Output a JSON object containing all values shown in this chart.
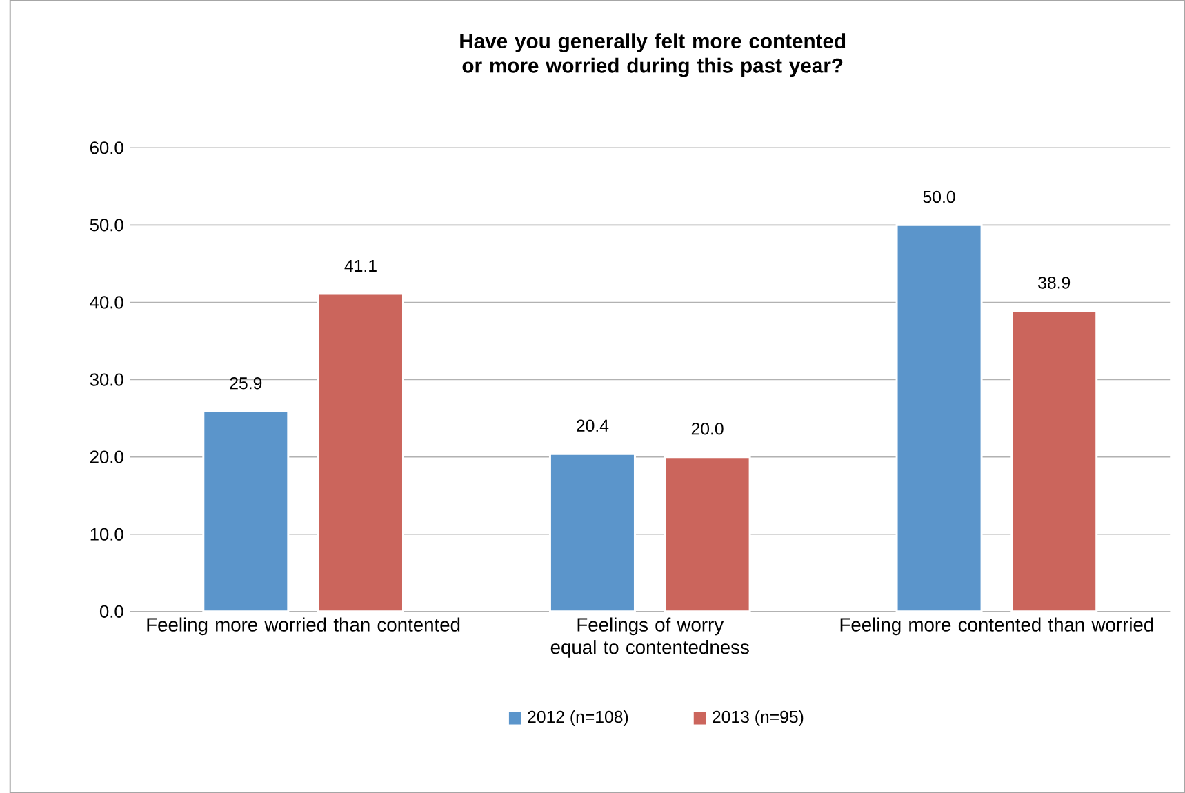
{
  "chart_data": {
    "type": "bar",
    "title": "Have you generally felt more contented or more worried during this past year?",
    "categories": [
      "Feeling more worried than contented",
      "Feelings of worry equal to contentedness",
      "Feeling more contented than worried"
    ],
    "series": [
      {
        "name": "2012 (n=108)",
        "color": "#5b95cb",
        "values": [
          25.9,
          20.4,
          50.0
        ],
        "value_labels": [
          "25.9",
          "20.4",
          "50.0"
        ]
      },
      {
        "name": "2013 (n=95)",
        "color": "#cb655c",
        "values": [
          41.1,
          20.0,
          38.9
        ],
        "value_labels": [
          "41.1",
          "20.0",
          "38.9"
        ]
      }
    ],
    "ylim": [
      0,
      60
    ],
    "yticks": [
      {
        "value": 0,
        "label": "0.0"
      },
      {
        "value": 10,
        "label": "10.0"
      },
      {
        "value": 20,
        "label": "20.0"
      },
      {
        "value": 30,
        "label": "30.0"
      },
      {
        "value": 40,
        "label": "40.0"
      },
      {
        "value": 50,
        "label": "50.0"
      },
      {
        "value": 60,
        "label": "60.0"
      }
    ],
    "grid": "y",
    "legend": "bottom"
  }
}
